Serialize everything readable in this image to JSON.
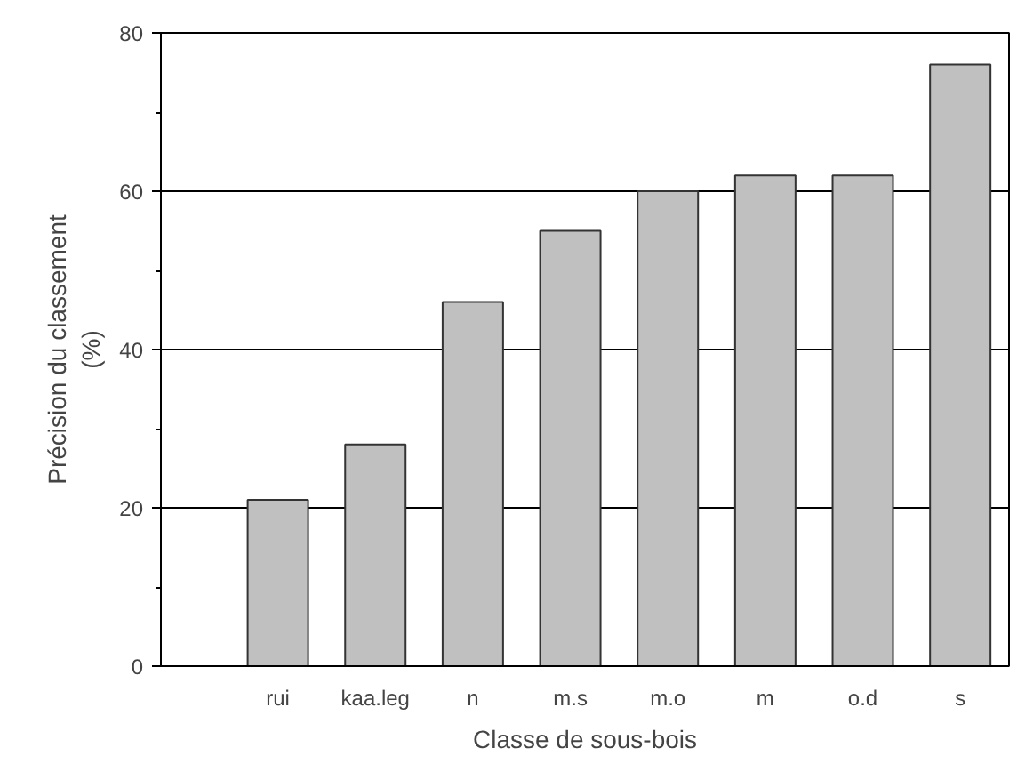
{
  "chart_data": {
    "type": "bar",
    "xlabel": "Classe de sous-bois",
    "ylabel": "Précision du classement\n(%)",
    "categories": [
      "rui",
      "kaa.leg",
      "n",
      "m.s",
      "m.o",
      "m",
      "o.d",
      "s"
    ],
    "values": [
      21,
      28,
      46,
      55,
      60,
      62,
      62,
      76
    ],
    "color": "#c0c0c0",
    "ylim": [
      0,
      80
    ],
    "yticks": [
      0,
      20,
      40,
      60,
      80
    ],
    "grid": "y"
  }
}
